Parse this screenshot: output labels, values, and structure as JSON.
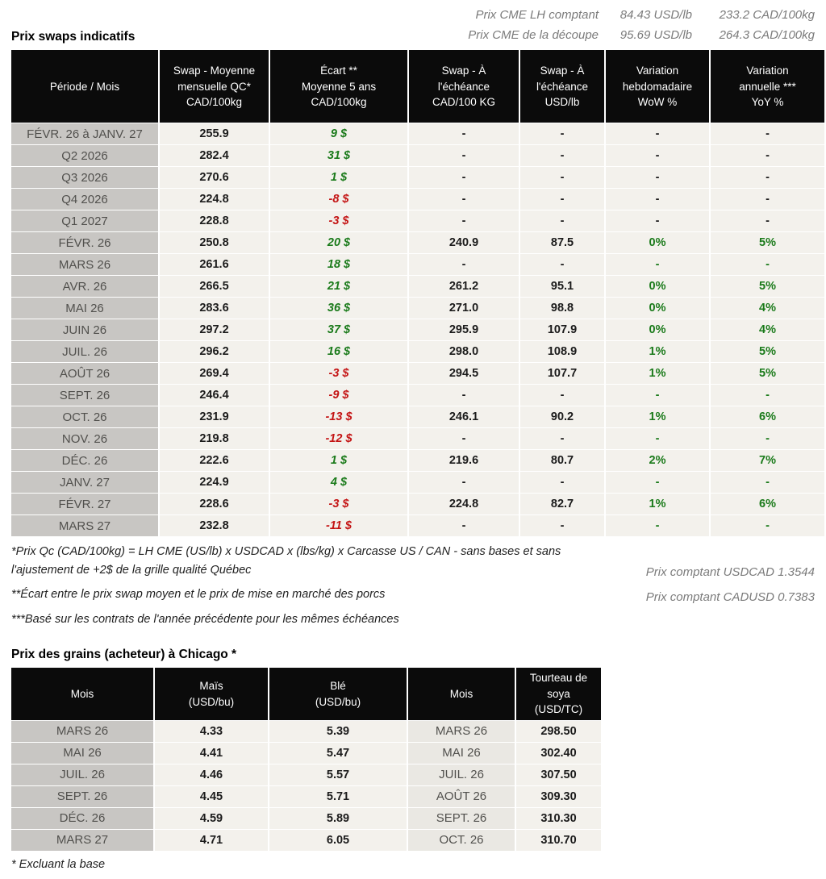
{
  "colors": {
    "positive": "#1a7a1a",
    "negative": "#c41414",
    "header_bg": "#0b0b0b",
    "period_bg": "#c8c6c3",
    "row_bg": "#f3f1ec"
  },
  "cme": {
    "lines": [
      {
        "label": "Prix CME LH comptant",
        "usd": "84.43 USD/lb",
        "cad": "233.2 CAD/100kg"
      },
      {
        "label": "Prix CME de la découpe",
        "usd": "95.69 USD/lb",
        "cad": "264.3 CAD/100kg"
      }
    ]
  },
  "swaps": {
    "title": "Prix swaps indicatifs",
    "headers": [
      "Période / Mois",
      "Swap - Moyenne\nmensuelle QC*\nCAD/100kg",
      "Écart **\nMoyenne 5 ans\nCAD/100kg",
      "Swap - À\nl'échéance\nCAD/100 KG",
      "Swap - À\nl'échéance\nUSD/lb",
      "Variation\nhebdomadaire\nWoW %",
      "Variation\nannuelle ***\nYoY %"
    ],
    "rows": [
      {
        "period": "FÉVR. 26 à  JANV. 27",
        "type": "agg",
        "avg": "255.9",
        "ecart": "9 $",
        "cad": "-",
        "usd": "-",
        "wow": "-",
        "yoy": "-"
      },
      {
        "period": "Q2 2026",
        "type": "agg",
        "avg": "282.4",
        "ecart": "31 $",
        "cad": "-",
        "usd": "-",
        "wow": "-",
        "yoy": "-"
      },
      {
        "period": "Q3 2026",
        "type": "agg",
        "avg": "270.6",
        "ecart": "1 $",
        "cad": "-",
        "usd": "-",
        "wow": "-",
        "yoy": "-"
      },
      {
        "period": "Q4 2026",
        "type": "agg",
        "avg": "224.8",
        "ecart": "-8 $",
        "cad": "-",
        "usd": "-",
        "wow": "-",
        "yoy": "-"
      },
      {
        "period": "Q1 2027",
        "type": "agg",
        "avg": "228.8",
        "ecart": "-3 $",
        "cad": "-",
        "usd": "-",
        "wow": "-",
        "yoy": "-"
      },
      {
        "period": "FÉVR. 26",
        "type": "month",
        "avg": "250.8",
        "ecart": "20 $",
        "cad": "240.9",
        "usd": "87.5",
        "wow": "0%",
        "yoy": "5%"
      },
      {
        "period": "MARS 26",
        "type": "month",
        "avg": "261.6",
        "ecart": "18 $",
        "cad": "-",
        "usd": "-",
        "wow": "-",
        "yoy": "-"
      },
      {
        "period": "AVR. 26",
        "type": "month",
        "avg": "266.5",
        "ecart": "21 $",
        "cad": "261.2",
        "usd": "95.1",
        "wow": "0%",
        "yoy": "5%"
      },
      {
        "period": "MAI 26",
        "type": "month",
        "avg": "283.6",
        "ecart": "36 $",
        "cad": "271.0",
        "usd": "98.8",
        "wow": "0%",
        "yoy": "4%"
      },
      {
        "period": "JUIN 26",
        "type": "month",
        "avg": "297.2",
        "ecart": "37 $",
        "cad": "295.9",
        "usd": "107.9",
        "wow": "0%",
        "yoy": "4%"
      },
      {
        "period": "JUIL. 26",
        "type": "month",
        "avg": "296.2",
        "ecart": "16 $",
        "cad": "298.0",
        "usd": "108.9",
        "wow": "1%",
        "yoy": "5%"
      },
      {
        "period": "AOÛT 26",
        "type": "month",
        "avg": "269.4",
        "ecart": "-3 $",
        "cad": "294.5",
        "usd": "107.7",
        "wow": "1%",
        "yoy": "5%"
      },
      {
        "period": "SEPT. 26",
        "type": "month",
        "avg": "246.4",
        "ecart": "-9 $",
        "cad": "-",
        "usd": "-",
        "wow": "-",
        "yoy": "-"
      },
      {
        "period": "OCT. 26",
        "type": "month",
        "avg": "231.9",
        "ecart": "-13 $",
        "cad": "246.1",
        "usd": "90.2",
        "wow": "1%",
        "yoy": "6%"
      },
      {
        "period": "NOV. 26",
        "type": "month",
        "avg": "219.8",
        "ecart": "-12 $",
        "cad": "-",
        "usd": "-",
        "wow": "-",
        "yoy": "-"
      },
      {
        "period": "DÉC. 26",
        "type": "month",
        "avg": "222.6",
        "ecart": "1 $",
        "cad": "219.6",
        "usd": "80.7",
        "wow": "2%",
        "yoy": "7%"
      },
      {
        "period": "JANV. 27",
        "type": "month",
        "avg": "224.9",
        "ecart": "4 $",
        "cad": "-",
        "usd": "-",
        "wow": "-",
        "yoy": "-"
      },
      {
        "period": "FÉVR. 27",
        "type": "month",
        "avg": "228.6",
        "ecart": "-3 $",
        "cad": "224.8",
        "usd": "82.7",
        "wow": "1%",
        "yoy": "6%"
      },
      {
        "period": "MARS 27",
        "type": "month",
        "avg": "232.8",
        "ecart": "-11 $",
        "cad": "-",
        "usd": "-",
        "wow": "-",
        "yoy": "-"
      }
    ]
  },
  "footnotes": {
    "note1": "*Prix Qc (CAD/100kg) = LH CME (US/lb) x USDCAD x (lbs/kg) x Carcasse US / CAN - sans bases et sans l'ajustement de +2$ de la grille qualité Québec",
    "spot1": "Prix comptant USDCAD 1.3544",
    "note2": "**Écart entre le prix swap moyen et le prix de mise en marché des porcs",
    "spot2": "Prix comptant CADUSD 0.7383",
    "note3": "***Basé sur les contrats de l'année précédente pour les mêmes échéances"
  },
  "grains": {
    "title": "Prix des grains (acheteur) à Chicago *",
    "headers": [
      "Mois",
      "Maïs\n(USD/bu)",
      "Blé\n(USD/bu)",
      "Mois",
      "Tourteau de\nsoya\n(USD/TC)"
    ],
    "rows": [
      [
        "MARS 26",
        "4.33",
        "5.39",
        "MARS 26",
        "298.50"
      ],
      [
        "MAI 26",
        "4.41",
        "5.47",
        "MAI 26",
        "302.40"
      ],
      [
        "JUIL. 26",
        "4.46",
        "5.57",
        "JUIL. 26",
        "307.50"
      ],
      [
        "SEPT. 26",
        "4.45",
        "5.71",
        "AOÛT 26",
        "309.30"
      ],
      [
        "DÉC. 26",
        "4.59",
        "5.89",
        "SEPT. 26",
        "310.30"
      ],
      [
        "MARS 27",
        "4.71",
        "6.05",
        "OCT. 26",
        "310.70"
      ]
    ],
    "footnote": "* Excluant la base"
  }
}
